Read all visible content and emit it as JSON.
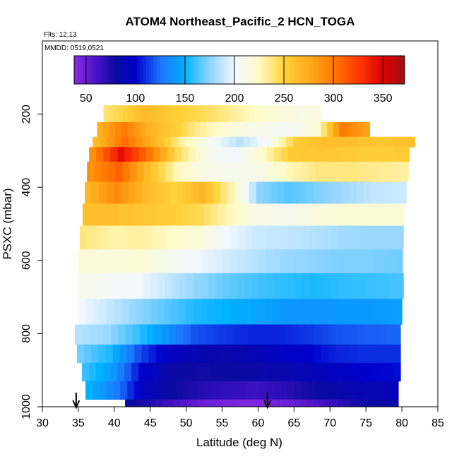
{
  "chart_data": {
    "type": "heatmap",
    "title": "ATOM4 Northeast_Pacific_2 HCN_TOGA",
    "flights_label": "Flts: 12,13",
    "dates_label": "MMDD: 0519,0521",
    "xlabel": "Latitude (deg N)",
    "ylabel": "PSXC (mbar)",
    "xlim": [
      30,
      85
    ],
    "ylim": [
      1000,
      0
    ],
    "x_ticks": [
      30,
      35,
      40,
      45,
      50,
      55,
      60,
      65,
      70,
      75,
      80,
      85
    ],
    "y_ticks": [
      200,
      400,
      600,
      800,
      1000
    ],
    "colorbar": {
      "range": [
        38,
        372
      ],
      "ticks": [
        50,
        100,
        150,
        200,
        250,
        300,
        350
      ],
      "stops": [
        {
          "v": 38,
          "c": "#8a2be2"
        },
        {
          "v": 60,
          "c": "#4a12c9"
        },
        {
          "v": 80,
          "c": "#0a0aa0"
        },
        {
          "v": 100,
          "c": "#0000cd"
        },
        {
          "v": 125,
          "c": "#1e74ff"
        },
        {
          "v": 150,
          "c": "#00b2ff"
        },
        {
          "v": 175,
          "c": "#8fd4ff"
        },
        {
          "v": 200,
          "c": "#f2f8ff"
        },
        {
          "v": 225,
          "c": "#fffbc8"
        },
        {
          "v": 250,
          "c": "#ffd23a"
        },
        {
          "v": 275,
          "c": "#ffab1a"
        },
        {
          "v": 300,
          "c": "#ff7a00"
        },
        {
          "v": 325,
          "c": "#ff3a00"
        },
        {
          "v": 350,
          "c": "#e00000"
        },
        {
          "v": 372,
          "c": "#9a1212"
        }
      ]
    },
    "arrows_latitude": [
      34.7,
      61.3
    ],
    "bands": [
      {
        "p": [
          176,
          222
        ],
        "lat": [
          38.5,
          68.7
        ],
        "v": [
          240,
          250,
          265,
          258,
          250,
          245,
          238,
          230,
          222,
          218,
          212,
          214
        ]
      },
      {
        "p": [
          222,
          262
        ],
        "lat": [
          37.6,
          75.5
        ],
        "v": [
          272,
          300,
          270,
          255,
          235,
          222,
          212,
          208,
          205,
          220,
          300,
          280
        ]
      },
      {
        "p": [
          262,
          290
        ],
        "lat": [
          37.0,
          81.8
        ],
        "v": [
          265,
          305,
          270,
          230,
          205,
          185,
          205,
          255,
          262,
          262,
          258,
          262
        ]
      },
      {
        "p": [
          290,
          330
        ],
        "lat": [
          36.5,
          81.0
        ],
        "v": [
          290,
          345,
          300,
          245,
          210,
          200,
          225,
          255,
          258,
          255,
          252,
          255
        ]
      },
      {
        "p": [
          330,
          385
        ],
        "lat": [
          36.2,
          80.9
        ],
        "v": [
          288,
          310,
          265,
          228,
          212,
          208,
          212,
          228,
          238,
          238,
          235,
          232
        ]
      },
      {
        "p": [
          385,
          445
        ],
        "lat": [
          35.9,
          80.6
        ],
        "v": [
          268,
          292,
          265,
          250,
          268,
          230,
          175,
          165,
          172,
          180,
          188,
          190
        ]
      },
      {
        "p": [
          445,
          505
        ],
        "lat": [
          35.6,
          80.3
        ],
        "v": [
          262,
          262,
          258,
          252,
          245,
          228,
          212,
          208,
          215,
          218,
          220,
          218
        ]
      },
      {
        "p": [
          505,
          570
        ],
        "lat": [
          35.2,
          80.2
        ],
        "v": [
          238,
          230,
          232,
          225,
          218,
          200,
          190,
          188,
          185,
          180,
          178,
          178
        ]
      },
      {
        "p": [
          570,
          635
        ],
        "lat": [
          35.0,
          80.1
        ],
        "v": [
          218,
          216,
          218,
          208,
          200,
          192,
          185,
          178,
          175,
          172,
          172,
          170
        ]
      },
      {
        "p": [
          635,
          705
        ],
        "lat": [
          35.0,
          80.2
        ],
        "v": [
          210,
          205,
          200,
          188,
          176,
          168,
          162,
          158,
          155,
          158,
          160,
          162
        ]
      },
      {
        "p": [
          705,
          775
        ],
        "lat": [
          35.0,
          80.0
        ],
        "v": [
          200,
          188,
          175,
          165,
          155,
          150,
          145,
          140,
          138,
          140,
          140,
          142
        ]
      },
      {
        "p": [
          775,
          830
        ],
        "lat": [
          34.5,
          79.8
        ],
        "v": [
          185,
          178,
          160,
          138,
          118,
          112,
          108,
          108,
          112,
          118,
          120,
          122
        ]
      },
      {
        "p": [
          830,
          880
        ],
        "lat": [
          34.8,
          79.8
        ],
        "v": [
          170,
          155,
          118,
          95,
          88,
          85,
          88,
          95,
          100,
          108,
          110,
          110
        ]
      },
      {
        "p": [
          880,
          930
        ],
        "lat": [
          35.5,
          79.8
        ],
        "v": [
          160,
          140,
          100,
          82,
          78,
          80,
          82,
          86,
          90,
          95,
          100,
          102
        ]
      },
      {
        "p": [
          930,
          980
        ],
        "lat": [
          36.0,
          79.5
        ],
        "v": [
          150,
          128,
          92,
          80,
          72,
          68,
          65,
          70,
          78,
          85,
          88,
          90
        ]
      },
      {
        "p": [
          980,
          1000
        ],
        "lat": [
          41.5,
          79.5
        ],
        "v": [
          82,
          72,
          60,
          50,
          45,
          42,
          45,
          52,
          62,
          72,
          80,
          85
        ]
      }
    ]
  }
}
